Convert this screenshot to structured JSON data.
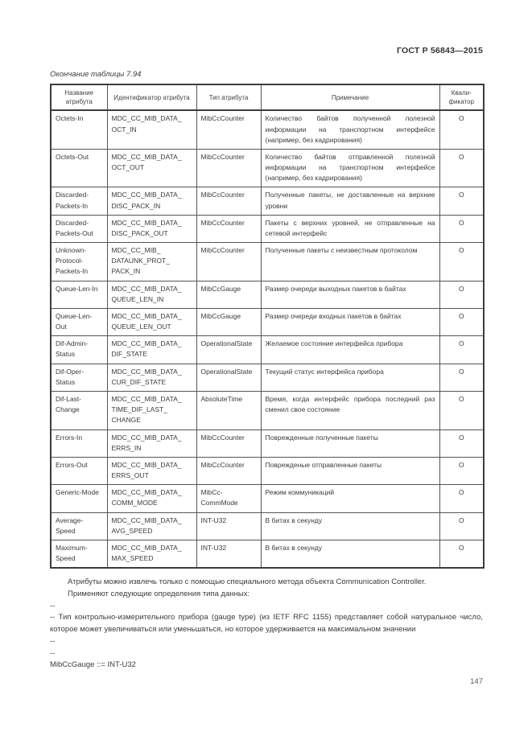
{
  "page": {
    "doc_header": "ГОСТ Р 56843—2015",
    "table_caption": "Окончание таблицы 7.94",
    "page_number": "147"
  },
  "table": {
    "columns": [
      "Название\nатрибута",
      "Идентификатор атрибута",
      "Тип атрибута",
      "Примечание",
      "Квали-\nфикатор"
    ],
    "rows": [
      {
        "name": "Octets-In",
        "id": "MDC_CC_MIB_DATA_\nOCT_IN",
        "type": "MibCcCounter",
        "note": "Количество байтов полученной полезной информации на транспортном интерфейсе (например, без кадрирования)",
        "qualifier": "О"
      },
      {
        "name": "Octets-Out",
        "id": "MDC_CC_MIB_DATA_\nOCT_OUT",
        "type": "MibCcCounter",
        "note": "Количество байтов отправленной полезной информации на транспортном интерфейсе (например, без кадрирования)",
        "qualifier": "О"
      },
      {
        "name": "Discarded-\nPackets-In",
        "id": "MDC_CC_MIB_DATA_\nDISC_PACK_IN",
        "type": "MibCcCounter",
        "note": "Полученные пакеты, не доставленные на верхние уровни",
        "qualifier": "О"
      },
      {
        "name": "Discarded-\nPackets-Out",
        "id": "MDC_CC_MIB_DATA_\nDISC_PACK_OUT",
        "type": "MibCcCounter",
        "note": "Пакеты с верхних уровней, не отправленные на сетевой интерфейс",
        "qualifier": "О"
      },
      {
        "name": "Unknown-\nProtocol-\nPackets-In",
        "id": "MDC_CC_MIB_\nDATAUNK_PROT_\nPACK_IN",
        "type": "MibCcCounter",
        "note": "Полученные пакеты с неизвестным протоколом",
        "qualifier": "О"
      },
      {
        "name": "Queue-Len-In",
        "id": "MDC_CC_MIB_DATA_\nQUEUE_LEN_IN",
        "type": "MibCcGauge",
        "note": "Размер очереди выходных пакетов в байтах",
        "qualifier": "О"
      },
      {
        "name": "Queue-Len-\nOut",
        "id": "MDC_CC_MIB_DATA_\nQUEUE_LEN_OUT",
        "type": "MibCcGauge",
        "note": "Размер очереди входных пакетов в байтах",
        "qualifier": "О"
      },
      {
        "name": "Dif-Admin-\nStatus",
        "id": "MDC_CC_MIB_DATA_\nDIF_STATE",
        "type": "OperationalState",
        "note": "Желаемое состояние интерфейса прибора",
        "qualifier": "О"
      },
      {
        "name": "Dif-Oper-\nStatus",
        "id": "MDC_CC_MIB_DATA_\nCUR_DIF_STATE",
        "type": "OperationalState",
        "note": "Текущий статус интерфейса прибора",
        "qualifier": "О"
      },
      {
        "name": "Dif-Last-\nChange",
        "id": "MDC_CC_MIB_DATA_\nTIME_DIF_LAST_\nCHANGE",
        "type": "AbsoluteTime",
        "note": "Время, когда интерфейс прибора последний раз сменил свое состояние",
        "qualifier": "О"
      },
      {
        "name": "Errors-In",
        "id": "MDC_CC_MIB_DATA_\nERRS_IN",
        "type": "MibCcCounter",
        "note": "Поврежденные полученные пакеты",
        "qualifier": "О"
      },
      {
        "name": "Errors-Out",
        "id": "MDC_CC_MIB_DATA_\nERRS_OUT",
        "type": "MibCcCounter",
        "note": "Поврежденые отправленные пакеты",
        "qualifier": "О"
      },
      {
        "name": "Generic-Mode",
        "id": "MDC_CC_MIB_DATA_\nCOMM_MODE",
        "type": "MibCc-\nCommMode",
        "note": "Режим коммуникаций",
        "qualifier": "О"
      },
      {
        "name": "Average-\nSpeed",
        "id": "MDC_CC_MIB_DATA_\nAVG_SPEED",
        "type": "INT-U32",
        "note": "В битах в секунду",
        "qualifier": "О"
      },
      {
        "name": "Maximum-\nSpeed",
        "id": "MDC_CC_MIB_DATA_\nMAX_SPEED",
        "type": "INT-U32",
        "note": "В битах в секунду",
        "qualifier": "О"
      }
    ]
  },
  "paragraphs": [
    {
      "text": "Атрибуты можно извлечь только с помощью специального метода объекта Communication Controller.",
      "indent": true
    },
    {
      "text": "Применяют следующие определения типа данных:",
      "indent": true
    },
    {
      "text": "--",
      "indent": false
    },
    {
      "text": "-- Тип контрольно-измерительного прибора (gauge type) (из IETF RFC 1155) представляет собой натуральное число, которое может увеличиваться или уменьшаться, но которое удерживается на максимальном значении",
      "indent": false
    },
    {
      "text": "--",
      "indent": false
    },
    {
      "text": "--",
      "indent": false
    },
    {
      "text": "MibCcGauge ::= INT-U32",
      "indent": false
    }
  ]
}
